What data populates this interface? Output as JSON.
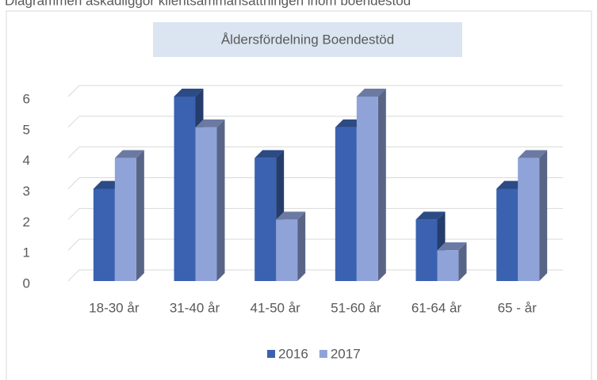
{
  "caption": "Diagrammen åskådliggör klientsammansättningen inom boendestöd",
  "chart_data": {
    "type": "bar",
    "title": "Åldersfördelning Boendestöd",
    "categories": [
      "18-30 år",
      "31-40 år",
      "41-50 år",
      "51-60 år",
      "61-64 år",
      "65 - år"
    ],
    "series": [
      {
        "name": "2016",
        "color": "#3a62b0",
        "values": [
          3,
          6,
          4,
          5,
          2,
          3
        ]
      },
      {
        "name": "2017",
        "color": "#8fa3d8",
        "values": [
          4,
          5,
          2,
          6,
          1,
          4
        ]
      }
    ],
    "ylim": [
      0,
      6
    ],
    "yticks": [
      0,
      1,
      2,
      3,
      4,
      5,
      6
    ],
    "grid": true,
    "legend": "bottom"
  }
}
